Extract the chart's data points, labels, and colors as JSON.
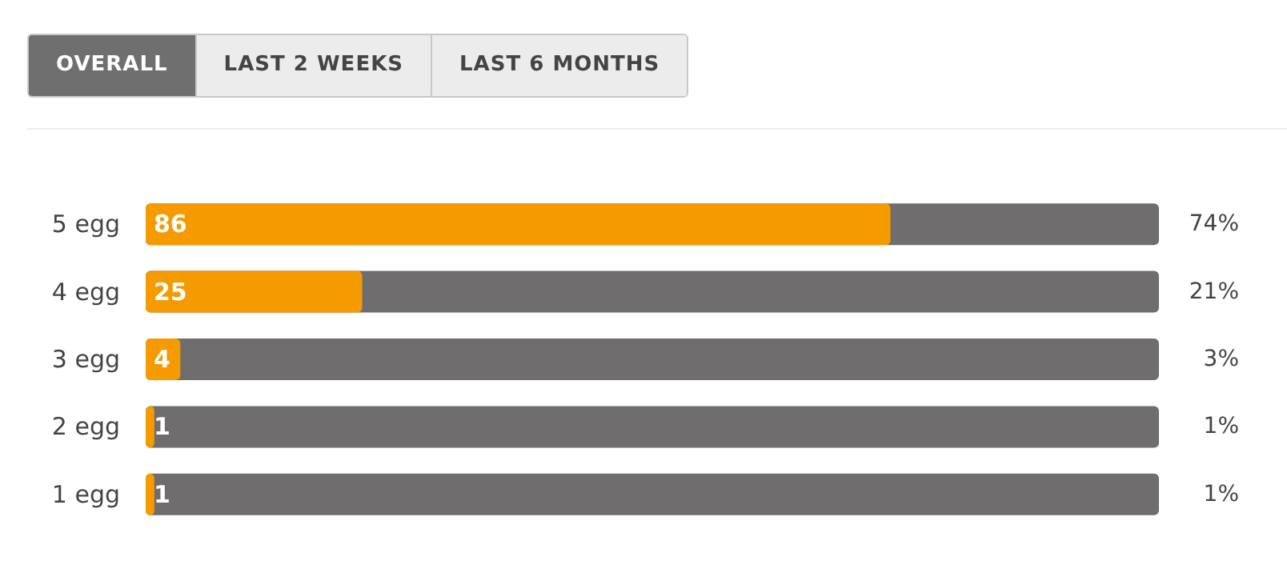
{
  "chart_data": {
    "type": "bar",
    "orientation": "horizontal",
    "categories": [
      "5 egg",
      "4 egg",
      "3 egg",
      "2 egg",
      "1 egg"
    ],
    "values": [
      86,
      25,
      4,
      1,
      1
    ],
    "color": "#f59b00",
    "xlim": [
      0,
      117
    ],
    "tick_labels": "y",
    "grid": false,
    "data_labels": true,
    "annotations": [
      "OVERALL",
      "LAST 2 WEEKS",
      "LAST 6 MONTHS",
      "74%",
      "21%",
      "3%",
      "1%",
      "1%"
    ]
  }
}
